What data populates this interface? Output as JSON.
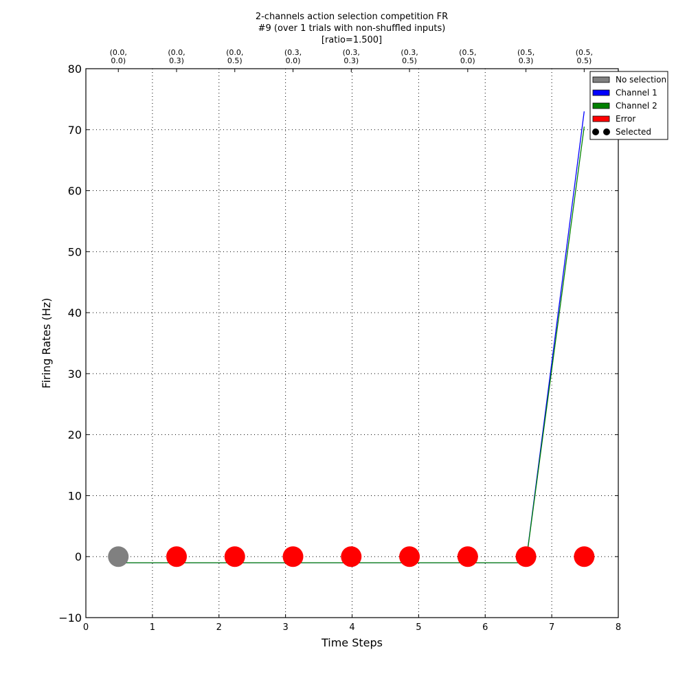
{
  "chart_data": {
    "type": "line",
    "title": [
      "2-channels action selection competition FR",
      "#9 (over 1 trials with non-shuffled inputs)",
      "[ratio=1.500]"
    ],
    "xlabel": "Time Steps",
    "ylabel": "Firing Rates (Hz)",
    "xlim": [
      0,
      8
    ],
    "ylim": [
      -10,
      80
    ],
    "grid": true,
    "xticks": [
      0,
      1,
      2,
      3,
      4,
      5,
      6,
      7,
      8
    ],
    "xtick_labels": [
      "0",
      "1",
      "2",
      "3",
      "4",
      "5",
      "6",
      "7",
      "8"
    ],
    "yticks": [
      -10,
      0,
      10,
      20,
      30,
      40,
      50,
      60,
      70,
      80
    ],
    "ytick_labels": [
      "−10",
      "0",
      "10",
      "20",
      "30",
      "40",
      "50",
      "60",
      "70",
      "80"
    ],
    "top_ticks": {
      "positions": [
        0.4875,
        1.3625,
        2.2375,
        3.1125,
        3.9875,
        4.8625,
        5.7375,
        6.6125,
        7.4875
      ],
      "labels": [
        [
          "(0.0,",
          "0.0)"
        ],
        [
          "(0.0,",
          "0.3)"
        ],
        [
          "(0.0,",
          "0.5)"
        ],
        [
          "(0.3,",
          "0.0)"
        ],
        [
          "(0.3,",
          "0.3)"
        ],
        [
          "(0.3,",
          "0.5)"
        ],
        [
          "(0.5,",
          "0.0)"
        ],
        [
          "(0.5,",
          "0.3)"
        ],
        [
          "(0.5,",
          "0.5)"
        ]
      ]
    },
    "series": [
      {
        "name": "Channel 1",
        "color": "#0000ff",
        "x": [
          0.4875,
          1.3625,
          2.2375,
          3.1125,
          3.9875,
          4.8625,
          5.7375,
          6.6125,
          7.4875
        ],
        "y": [
          -1,
          -1,
          -1,
          -1,
          -1,
          -1,
          -1,
          -1,
          73
        ]
      },
      {
        "name": "Channel 2",
        "color": "#008000",
        "x": [
          0.4875,
          1.3625,
          2.2375,
          3.1125,
          3.9875,
          4.8625,
          5.7375,
          6.6125,
          7.4875
        ],
        "y": [
          -1,
          -1,
          -1,
          -1,
          -1,
          -1,
          -1,
          -1,
          70.5
        ]
      }
    ],
    "markers": {
      "x": [
        0.4875,
        1.3625,
        2.2375,
        3.1125,
        3.9875,
        4.8625,
        5.7375,
        6.6125,
        7.4875
      ],
      "y": [
        0,
        0,
        0,
        0,
        0,
        0,
        0,
        0,
        0
      ],
      "categories": [
        "No selection",
        "Error",
        "Error",
        "Error",
        "Error",
        "Error",
        "Error",
        "Error",
        "Error"
      ]
    },
    "category_colors": {
      "No selection": "#808080",
      "Channel 1": "#0000ff",
      "Channel 2": "#008000",
      "Error": "#ff0000"
    },
    "legend": {
      "position": "top-right",
      "entries": [
        {
          "label": "No selection",
          "kind": "patch",
          "color": "#808080"
        },
        {
          "label": "Channel 1",
          "kind": "patch",
          "color": "#0000ff"
        },
        {
          "label": "Channel 2",
          "kind": "patch",
          "color": "#008000"
        },
        {
          "label": "Error",
          "kind": "patch",
          "color": "#ff0000"
        },
        {
          "label": "Selected",
          "kind": "dots",
          "color": "#000000"
        }
      ]
    }
  }
}
